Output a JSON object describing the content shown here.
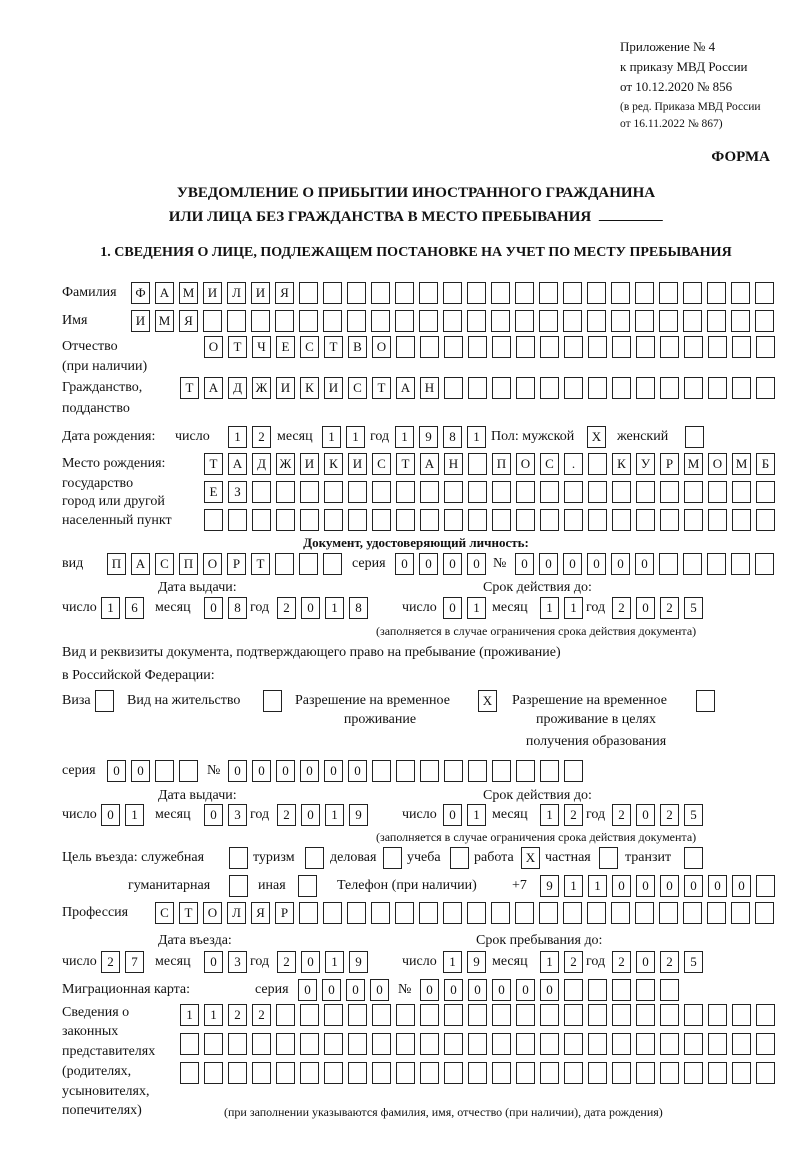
{
  "header": {
    "appendix": "Приложение № 4",
    "order": "к приказу МВД России",
    "order_date": "от 10.12.2020 № 856",
    "revision_1": "(в ред. Приказа МВД России",
    "revision_2": "от 16.11.2022 № 867)",
    "form_label": "ФОРМА",
    "title_1": "УВЕДОМЛЕНИЕ О ПРИБЫТИИ ИНОСТРАННОГО ГРАЖДАНИНА",
    "title_2": "ИЛИ ЛИЦА БЕЗ ГРАЖДАНСТВА В МЕСТО ПРЕБЫВАНИЯ",
    "section_1": "1. СВЕДЕНИЯ О ЛИЦЕ, ПОДЛЕЖАЩЕМ ПОСТАНОВКЕ НА УЧЕТ ПО МЕСТУ ПРЕБЫВАНИЯ"
  },
  "labels": {
    "surname": "Фамилия",
    "name": "Имя",
    "patronymic": "Отчество",
    "patronymic_note": "(при наличии)",
    "citizenship": "Гражданство,",
    "citizenship_2": "подданство",
    "dob": "Дата рождения:",
    "day": "число",
    "month": "месяц",
    "year": "год",
    "sex_male": "Пол: мужской",
    "sex_female": "женский",
    "birthplace_1": "Место рождения:",
    "birthplace_2": "государство",
    "birthplace_3": "город или другой",
    "birthplace_4": "населенный пункт",
    "id_doc": "Документ, удостоверяющий личность:",
    "doc_type": "вид",
    "series": "серия",
    "number": "№",
    "issue_date": "Дата выдачи:",
    "valid_until": "Срок действия до:",
    "validity_note": "(заполняется в случае ограничения срока действия документа)",
    "stay_doc_1": "Вид и реквизиты документа, подтверждающего право на пребывание (проживание)",
    "stay_doc_2": "в Российской Федерации:",
    "visa": "Виза",
    "residence_permit": "Вид на жительство",
    "temp_residence_1": "Разрешение на временное",
    "temp_residence_2": "проживание",
    "temp_edu_1": "Разрешение на временное",
    "temp_edu_2": "проживание в целях",
    "temp_edu_3": "получения образования",
    "purpose": "Цель въезда: служебная",
    "tourism": "туризм",
    "business": "деловая",
    "study": "учеба",
    "work": "работа",
    "private": "частная",
    "transit": "транзит",
    "humanitarian": "гуманитарная",
    "other": "иная",
    "phone": "Телефон (при наличии)",
    "phone_prefix": "+7",
    "profession": "Профессия",
    "entry_date": "Дата въезда:",
    "stay_until": "Срок пребывания до:",
    "migration_card": "Миграционная карта:",
    "reps_1": "Сведения о",
    "reps_2": "законных",
    "reps_3": "представителях",
    "reps_4": "(родителях,",
    "reps_5": "усыновителях,",
    "reps_6": "попечителях)",
    "reps_note": "(при заполнении указываются фамилия, имя, отчество (при наличии), дата рождения)"
  },
  "person": {
    "surname": "ФАМИЛИЯ",
    "name": "ИМЯ",
    "patronymic": "ОТЧЕСТВО",
    "citizenship": "ТАДЖИКИСТАН",
    "dob": {
      "day": "12",
      "month": "11",
      "year": "1981"
    },
    "sex_male": "X",
    "sex_female": "",
    "birthplace": [
      "ТАДЖИКИСТАН ПОС. КУРМОМБ",
      "ЕЗ",
      ""
    ]
  },
  "id_document": {
    "type": "ПАСПОРТ",
    "series": "0000",
    "number": "000000",
    "issued": {
      "day": "16",
      "month": "08",
      "year": "2018"
    },
    "valid_until": {
      "day": "01",
      "month": "11",
      "year": "2025"
    }
  },
  "stay_document": {
    "visa": "",
    "residence_permit": "",
    "temp_residence": "X",
    "temp_edu": "",
    "series": "00",
    "number": "000000",
    "issued": {
      "day": "01",
      "month": "03",
      "year": "2019"
    },
    "valid_until": {
      "day": "01",
      "month": "12",
      "year": "2025"
    }
  },
  "purpose": {
    "official": "",
    "tourism": "",
    "business": "",
    "study": "",
    "work": "X",
    "private": "",
    "transit": "",
    "humanitarian": "",
    "other": ""
  },
  "phone": "911000000",
  "profession": "СТОЛЯР",
  "entry": {
    "date": {
      "day": "27",
      "month": "03",
      "year": "2019"
    },
    "stay_until": {
      "day": "19",
      "month": "12",
      "year": "2025"
    }
  },
  "migration_card": {
    "series": "0000",
    "number": "000000"
  },
  "legal_representatives": [
    "1122",
    "",
    ""
  ]
}
